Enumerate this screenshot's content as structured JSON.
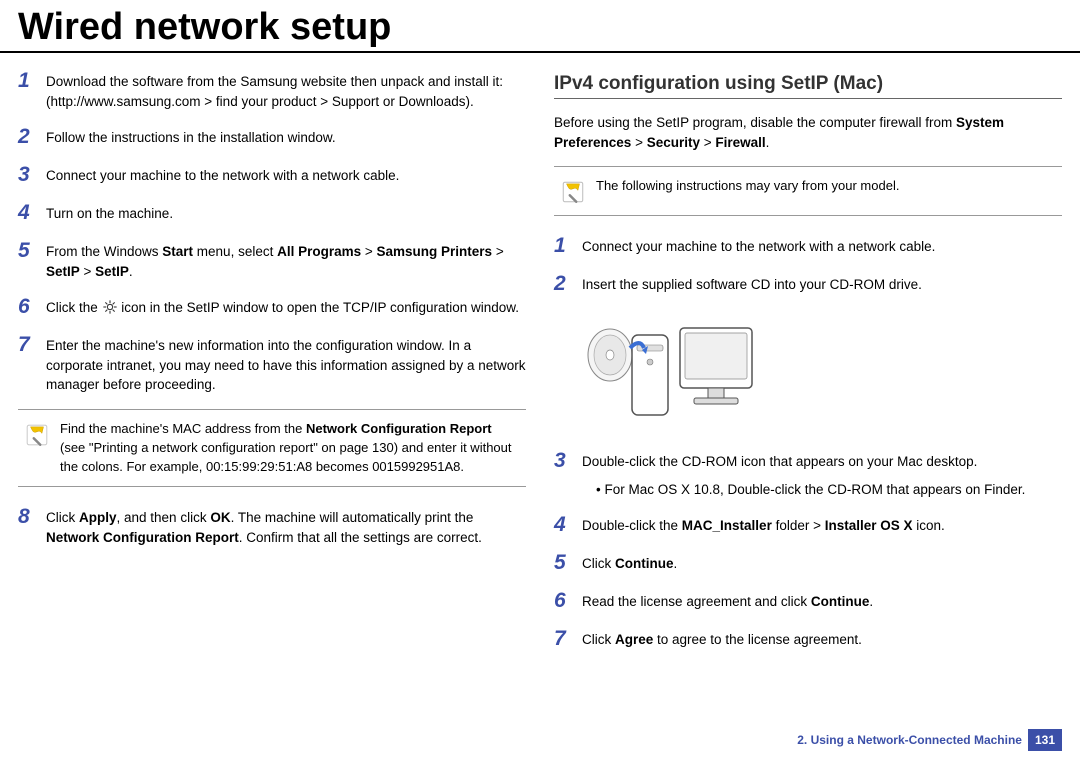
{
  "title": "Wired network setup",
  "left": {
    "steps": [
      {
        "n": "1",
        "html": " Download the software from the Samsung website then unpack and install it: (http://www.samsung.com > find your product > Support or Downloads)."
      },
      {
        "n": "2",
        "html": "Follow the instructions in the installation window."
      },
      {
        "n": "3",
        "html": "Connect your machine to the network with a network cable."
      },
      {
        "n": "4",
        "html": "Turn on the machine."
      },
      {
        "n": "5",
        "html": "From the Windows <b>Start</b> menu, select <b>All Programs</b> > <b>Samsung Printers</b> > <b>SetIP</b> > <b>SetIP</b>."
      },
      {
        "n": "6",
        "html": "Click the [GEAR] icon in the SetIP window to open the TCP/IP configuration window."
      },
      {
        "n": "7",
        "html": "Enter the machine's new information into the configuration window. In a corporate intranet, you may need to have this information assigned by a network manager before proceeding."
      }
    ],
    "note": "Find the machine's MAC address from the <b>Network Configuration Report</b> (see \"Printing a network configuration report\" on page 130) and enter it without the colons. For example, 00:15:99:29:51:A8 becomes 0015992951A8.",
    "step8": {
      "n": "8",
      "html": "Click <b>Apply</b>, and then click <b>OK</b>. The machine will automatically print the <b>Network Configuration Report</b>. Confirm that all the settings are correct."
    }
  },
  "right": {
    "heading": "IPv4 configuration using SetIP (Mac)",
    "intro": "Before using the SetIP program, disable the computer firewall from <b>System Preferences</b> > <b>Security</b> > <b>Firewall</b>.",
    "note": "The following instructions may vary from your model.",
    "steps1": [
      {
        "n": "1",
        "html": "Connect your machine to the network with a network cable."
      },
      {
        "n": "2",
        "html": "Insert the supplied software CD into your CD-ROM drive."
      }
    ],
    "steps2": [
      {
        "n": "3",
        "html": "Double-click the CD-ROM icon that appears on your Mac desktop.",
        "sub": "For Mac OS X 10.8, Double-click the CD-ROM that appears on Finder."
      },
      {
        "n": "4",
        "html": "Double-click the <b>MAC_Installer</b> folder > <b>Installer OS X</b> icon."
      },
      {
        "n": "5",
        "html": "Click <b>Continue</b>."
      },
      {
        "n": "6",
        "html": "Read the license agreement and click <b>Continue</b>."
      },
      {
        "n": "7",
        "html": "Click <b>Agree</b> to agree to the license agreement."
      }
    ]
  },
  "footer": {
    "chapter": "2.  Using a Network-Connected Machine",
    "page": "131"
  },
  "colors": {
    "accent": "#3b4fa8",
    "rule": "#999999"
  }
}
